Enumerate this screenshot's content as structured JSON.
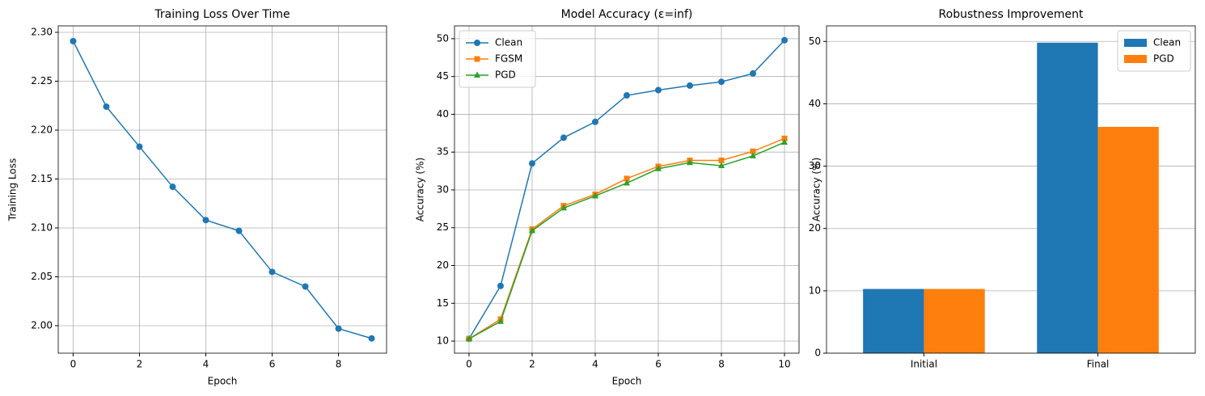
{
  "chart_data": [
    {
      "type": "line",
      "title": "Training Loss Over Time",
      "x_label": "Epoch",
      "y_label": "Training Loss",
      "x": [
        0,
        1,
        2,
        3,
        4,
        5,
        6,
        7,
        8,
        9
      ],
      "series": [
        {
          "color": "#1f77b4",
          "marker": "circle",
          "values": [
            2.291,
            2.224,
            2.183,
            2.142,
            2.108,
            2.097,
            2.055,
            2.04,
            1.997,
            1.987
          ]
        }
      ],
      "xlim": [
        -0.45,
        9.45
      ],
      "xticks": [
        0,
        2,
        4,
        6,
        8
      ],
      "ylim": [
        1.9719,
        2.3066
      ],
      "yticks": [
        {
          "value": 2.0,
          "label": "2.00"
        },
        2.05,
        {
          "value": 2.1,
          "label": "2.10"
        },
        2.15,
        {
          "value": 2.2,
          "label": "2.20"
        },
        2.25,
        {
          "value": 2.3,
          "label": "2.30"
        }
      ],
      "grid": "both"
    },
    {
      "type": "line",
      "title": "Model Accuracy (ε=inf)",
      "x_label": "Epoch",
      "y_label": "Accuracy (%)",
      "x": [
        0,
        1,
        2,
        3,
        4,
        5,
        6,
        7,
        8,
        9,
        10
      ],
      "series": [
        {
          "name": "Clean",
          "color": "#1f77b4",
          "marker": "circle",
          "values": [
            10.3,
            17.3,
            33.5,
            36.9,
            39.0,
            42.5,
            43.2,
            43.8,
            44.3,
            45.4,
            49.8
          ]
        },
        {
          "name": "FGSM",
          "color": "#ff7f0e",
          "marker": "square",
          "values": [
            10.3,
            12.9,
            24.8,
            27.9,
            29.4,
            31.5,
            33.1,
            33.9,
            33.9,
            35.1,
            36.8
          ]
        },
        {
          "name": "PGD",
          "color": "#2ca02c",
          "marker": "triangle",
          "values": [
            10.3,
            12.6,
            24.6,
            27.6,
            29.2,
            30.9,
            32.8,
            33.6,
            33.2,
            34.5,
            36.3
          ]
        }
      ],
      "xlim": [
        -0.46,
        10.46
      ],
      "xticks": [
        0,
        2,
        4,
        6,
        8,
        10
      ],
      "ylim": [
        8.4,
        51.7
      ],
      "yticks": [
        10,
        15,
        20,
        25,
        30,
        35,
        40,
        45,
        50
      ],
      "grid": "both",
      "legend": "upper-left"
    },
    {
      "type": "bar",
      "title": "Robustness Improvement",
      "y_label": "Accuracy (%)",
      "categories": [
        "Initial",
        "Final"
      ],
      "series": [
        {
          "name": "Clean",
          "color": "#1f77b4",
          "values": [
            10.3,
            49.8
          ]
        },
        {
          "name": "PGD",
          "color": "#ff7f0e",
          "values": [
            10.3,
            36.3
          ]
        }
      ],
      "ylim": [
        0,
        52.5
      ],
      "yticks": [
        0,
        10,
        20,
        30,
        40,
        50
      ],
      "grid": "y",
      "legend": "upper-right"
    }
  ]
}
